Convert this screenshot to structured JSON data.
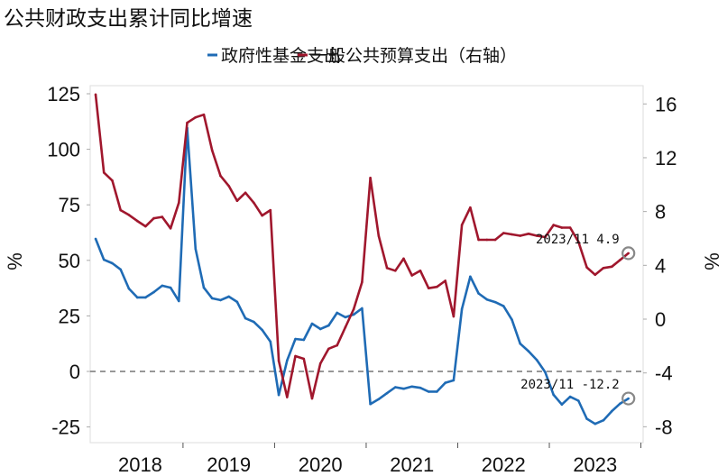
{
  "chart_data": {
    "type": "line",
    "title": "公共财政支出累计同比增速",
    "x_start": "2018/02",
    "x_end": "2023/11",
    "x_note_months": "Feb–Dec each year",
    "xtick_labels": [
      "2018",
      "2019",
      "2020",
      "2021",
      "2022",
      "2023"
    ],
    "y_left": {
      "label": "%",
      "ylim": [
        -25,
        125
      ],
      "ticks": [
        125,
        100,
        75,
        50,
        25,
        0,
        -25
      ]
    },
    "y_right": {
      "label": "%",
      "ylim": [
        -8,
        16
      ],
      "ticks": [
        16,
        12,
        8,
        4,
        0,
        -4,
        -8
      ]
    },
    "reference_line": {
      "axis": "left",
      "value": 0,
      "style": "dashed"
    },
    "legend_position": "top",
    "series": [
      {
        "name": "政府性基金支出",
        "axis": "left",
        "color": "#1f6bb5",
        "values": [
          59.7,
          50.3,
          48.7,
          45.9,
          37.3,
          33.3,
          33.3,
          35.7,
          38.6,
          37.7,
          31.7,
          109.6,
          55.2,
          37.7,
          32.9,
          32.1,
          33.7,
          31.3,
          23.9,
          22.3,
          18.7,
          13.4,
          -10.6,
          4.9,
          14.6,
          14.2,
          21.5,
          19.1,
          20.7,
          26.4,
          24.4,
          25.6,
          28.4,
          -14.7,
          -12.5,
          -9.8,
          -7.1,
          -7.8,
          -6.8,
          -7.4,
          -9.1,
          -9.1,
          -5.1,
          -4.0,
          28.1,
          42.7,
          35.1,
          32.4,
          31.2,
          29.4,
          23.3,
          12.5,
          9.1,
          5.1,
          -0.3,
          -10.5,
          -14.9,
          -11.4,
          -13.2,
          -21.3,
          -23.6,
          -22.0,
          -17.9,
          -14.5,
          -12.2
        ]
      },
      {
        "name": "一般公共预算支出（右轴）",
        "axis": "right",
        "color": "#a0172d",
        "values": [
          16.7,
          10.9,
          10.3,
          8.1,
          7.75,
          7.3,
          6.9,
          7.5,
          7.6,
          6.75,
          8.65,
          14.6,
          15.0,
          15.2,
          12.55,
          10.65,
          9.9,
          8.8,
          9.4,
          8.65,
          7.7,
          8.1,
          -3.1,
          -5.8,
          -2.75,
          -2.95,
          -5.9,
          -3.3,
          -2.2,
          -1.95,
          -0.6,
          0.74,
          2.75,
          10.5,
          6.2,
          3.8,
          3.6,
          4.5,
          3.25,
          3.6,
          2.3,
          2.4,
          2.85,
          0.2,
          7.0,
          8.3,
          5.9,
          5.9,
          5.9,
          6.4,
          6.3,
          6.2,
          6.35,
          6.2,
          6.1,
          7.0,
          6.8,
          6.8,
          5.75,
          3.85,
          3.3,
          3.8,
          3.9,
          4.4,
          4.9
        ]
      }
    ],
    "annotations": [
      {
        "text": "2023/11  4.9",
        "series": "一般公共预算支出（右轴）",
        "x": "2023/11",
        "value": 4.9
      },
      {
        "text": "2023/11 -12.2",
        "series": "政府性基金支出",
        "x": "2023/11",
        "value": -12.2
      }
    ]
  }
}
